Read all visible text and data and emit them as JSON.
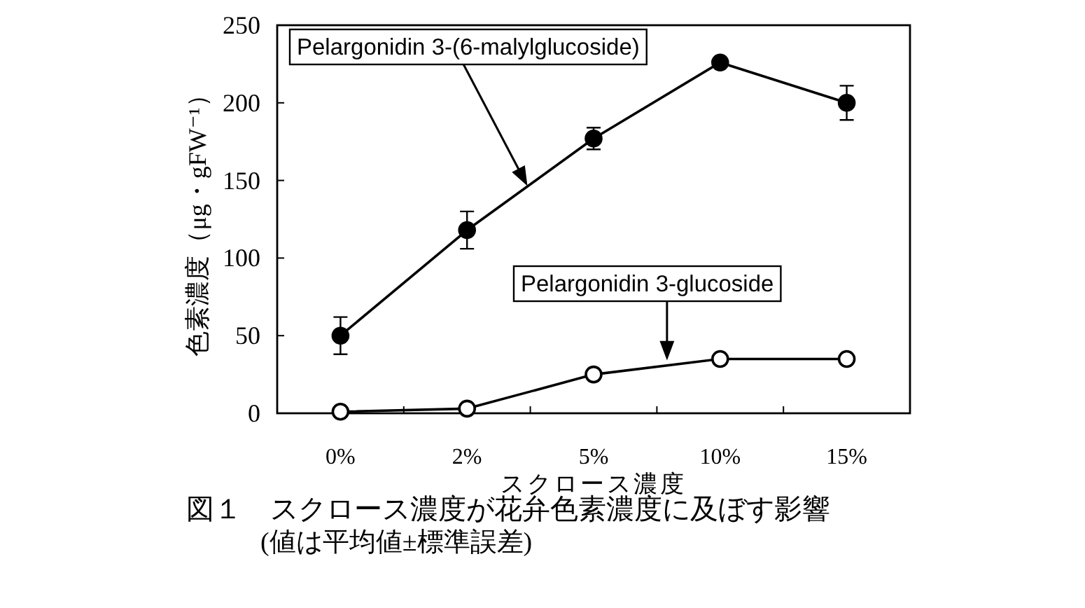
{
  "chart_data": {
    "type": "line",
    "xlabel": "スクロース濃度",
    "ylabel": "色素濃度（μg・gFW⁻¹）",
    "categories": [
      "0%",
      "2%",
      "5%",
      "10%",
      "15%"
    ],
    "ylim": [
      0,
      250
    ],
    "yticks": [
      0,
      50,
      100,
      150,
      200,
      250
    ],
    "marker": "circle",
    "series": [
      {
        "name": "Pelargonidin 3-(6-malylglucoside)",
        "color": "#000000",
        "values": [
          50,
          118,
          177,
          226,
          200
        ],
        "errors": [
          12,
          12,
          7,
          null,
          11
        ]
      },
      {
        "name": "Pelargonidin 3-glucoside",
        "color": "#000000",
        "colors": [
          "#ffffff",
          "#ffffff",
          "#ffffff",
          "#ffffff",
          "#ffffff"
        ],
        "values": [
          1,
          3,
          25,
          35,
          35
        ]
      }
    ],
    "annotations": [
      "図１　スクロース濃度が花弁色素濃度に及ぼす影響",
      "(値は平均値±標準誤差)"
    ]
  }
}
